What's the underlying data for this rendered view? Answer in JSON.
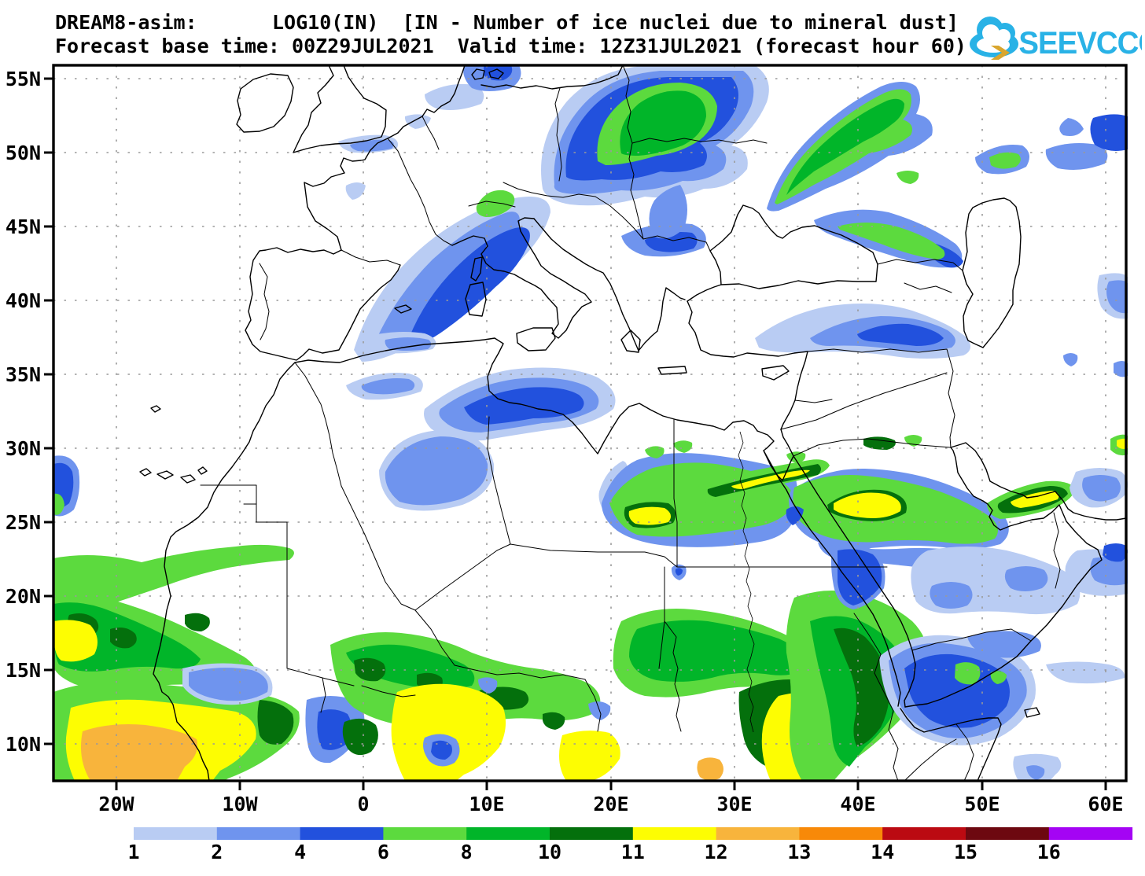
{
  "header": {
    "model": "DREAM8-asim:",
    "variable": "LOG10(IN)  [IN - Number of ice nuclei due to mineral dust]",
    "subtitle": "Forecast base time: 00Z29JUL2021  Valid time: 12Z31JUL2021 (forecast hour 60)"
  },
  "logo": {
    "text": "SEEVCCC",
    "cloud_color": "#29b2e6",
    "bolt_color": "#d9a62e"
  },
  "map": {
    "x_tick_labels": [
      "20W",
      "10W",
      "0",
      "10E",
      "20E",
      "30E",
      "40E",
      "50E",
      "60E"
    ],
    "y_tick_labels": [
      "55N",
      "50N",
      "45N",
      "40N",
      "35N",
      "30N",
      "25N",
      "20N",
      "15N",
      "10N"
    ],
    "grid_color": "#9a9a9a",
    "coast_color": "#000000",
    "background": "#ffffff"
  },
  "colorbar": {
    "tick_labels": [
      "1",
      "2",
      "4",
      "6",
      "8",
      "10",
      "11",
      "12",
      "13",
      "14",
      "15",
      "16"
    ],
    "colors": [
      "#b9ccf3",
      "#6f94ee",
      "#2251dd",
      "#5cda3e",
      "#01b529",
      "#04700c",
      "#fdfd02",
      "#f8b43c",
      "#f88908",
      "#bb0a12",
      "#6d0810",
      "#a404f4"
    ]
  },
  "chart_data": {
    "type": "heatmap",
    "subtype": "filled-contour-map",
    "title": "LOG10(IN)  [IN - Number of ice nuclei due to mineral dust]",
    "model": "DREAM8-asim",
    "base_time": "00Z29JUL2021",
    "valid_time": "12Z31JUL2021",
    "forecast_hour": 60,
    "levels": [
      1,
      2,
      4,
      6,
      8,
      10,
      11,
      12,
      13,
      14,
      15,
      16
    ],
    "palette": [
      "#b9ccf3",
      "#6f94ee",
      "#2251dd",
      "#5cda3e",
      "#01b529",
      "#04700c",
      "#fdfd02",
      "#f8b43c",
      "#f88908",
      "#bb0a12",
      "#6d0810",
      "#a404f4"
    ],
    "lon_ticks": [
      "20W",
      "10W",
      "0",
      "10E",
      "20E",
      "30E",
      "40E",
      "50E",
      "60E"
    ],
    "lat_ticks": [
      "55N",
      "50N",
      "45N",
      "40N",
      "35N",
      "30N",
      "25N",
      "20N",
      "15N",
      "10N"
    ],
    "lon_range_deg": [
      -25.1,
      61.8
    ],
    "lat_range_deg": [
      7.4,
      55.9
    ],
    "grid": "dotted, 10 deg lon x 5 deg lat",
    "legend_position": "bottom",
    "features": [
      "blue plume (2-6) from France across the Alps into central Europe",
      "green maximum (8-10) over eastern Poland/Belarus and a green wedge (8-10) over western Russia",
      "green band with yellow cores (10-12) across Egypt, northern Sudan coast and the Arabian Peninsula",
      "dark green and yellow belt (10-12) with orange cores (12-13) along the Sahel from West Africa to Sudan/Ethiopia",
      "blue areas (1-6) over Algeria coast, Turkey/Caucasus, Caspian and Horn of Africa"
    ]
  }
}
